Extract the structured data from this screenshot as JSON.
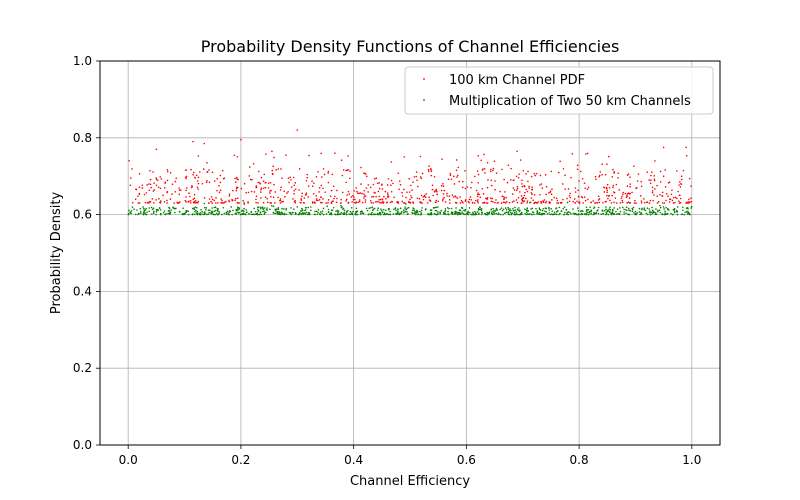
{
  "chart_data": {
    "type": "scatter",
    "title": "Probability Density Functions of Channel Efficiencies",
    "xlabel": "Channel Efficiency",
    "ylabel": "Probability Density",
    "xlim": [
      -0.05,
      1.05
    ],
    "ylim": [
      0.0,
      1.0
    ],
    "xticks": [
      "0.0",
      "0.2",
      "0.4",
      "0.6",
      "0.8",
      "1.0"
    ],
    "yticks": [
      "0.0",
      "0.2",
      "0.4",
      "0.6",
      "0.8",
      "1.0"
    ],
    "grid": true,
    "legend_position": "top-right",
    "series": [
      {
        "name": "100 km Channel PDF",
        "color": "#ff0000",
        "x_range": [
          0.0,
          1.0
        ],
        "y_min": 0.62,
        "y_typical": [
          0.63,
          0.71
        ],
        "y_max": 0.82,
        "point_count": 1000,
        "notable_points": [
          {
            "x": 0.3,
            "y": 0.82
          },
          {
            "x": 0.2,
            "y": 0.795
          },
          {
            "x": 0.115,
            "y": 0.79
          },
          {
            "x": 0.135,
            "y": 0.785
          },
          {
            "x": 0.99,
            "y": 0.775
          },
          {
            "x": 0.05,
            "y": 0.77
          },
          {
            "x": 0.69,
            "y": 0.765
          },
          {
            "x": 0.95,
            "y": 0.775
          },
          {
            "x": 0.255,
            "y": 0.765
          },
          {
            "x": 0.28,
            "y": 0.755
          }
        ]
      },
      {
        "name": "Multiplication of Two 50 km Channels",
        "color": "#008000",
        "x_range": [
          0.0,
          1.0
        ],
        "y_min": 0.6,
        "y_typical": [
          0.6,
          0.62
        ],
        "y_max": 0.635,
        "point_count": 1000
      }
    ]
  }
}
